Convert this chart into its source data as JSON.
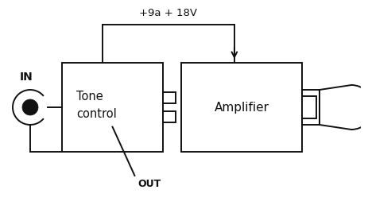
{
  "bg_color": "#ffffff",
  "line_color": "#111111",
  "title_text": "+9a + 18V",
  "in_label": "IN",
  "out_label": "OUT",
  "tone_label1": "Tone",
  "tone_label2": "control",
  "amp_label": "Amplifier",
  "linewidth": 1.4
}
